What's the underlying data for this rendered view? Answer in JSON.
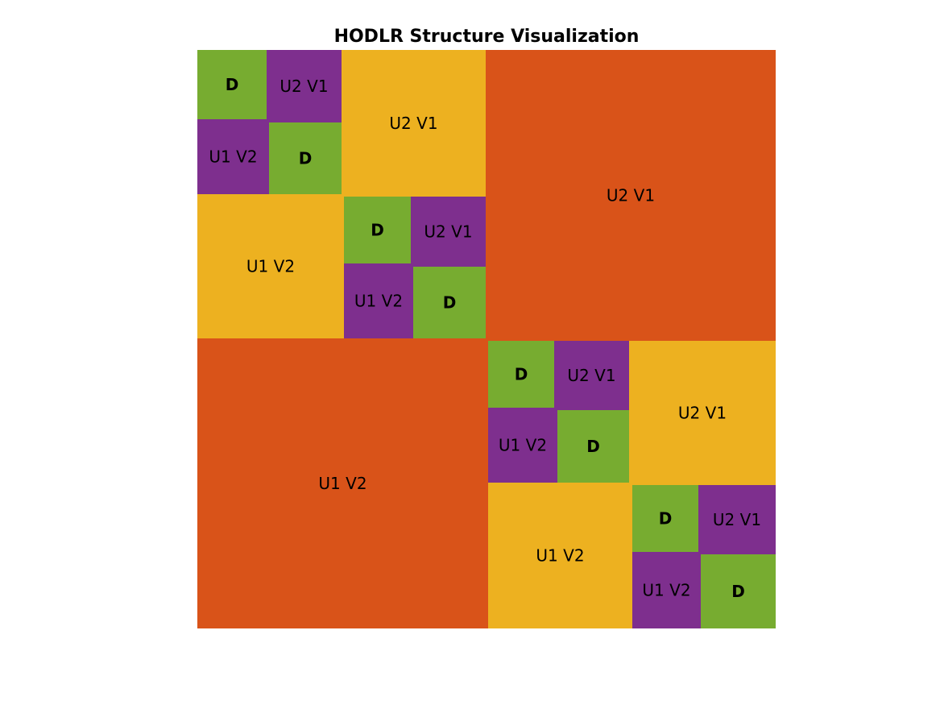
{
  "title": "HODLR Structure Visualization",
  "colors": {
    "diagonal": "#77AC30",
    "level3": "#7E2F8E",
    "level2": "#EDB120",
    "level1": "#D95319",
    "text": "#000000",
    "background": "#FFFFFF"
  },
  "labels": {
    "diagonal": "D",
    "upper": "U2 V1",
    "lower": "U1 V2"
  },
  "blocks": [
    {
      "name": "level1-upper",
      "level": "level1",
      "kind": "upper"
    },
    {
      "name": "level1-lower",
      "level": "level1",
      "kind": "lower"
    },
    {
      "name": "level2-upper-tl",
      "level": "level2",
      "kind": "upper"
    },
    {
      "name": "level2-lower-tl",
      "level": "level2",
      "kind": "lower"
    },
    {
      "name": "level2-upper-br",
      "level": "level2",
      "kind": "upper"
    },
    {
      "name": "level2-lower-br",
      "level": "level2",
      "kind": "lower"
    },
    {
      "name": "level3-upper-1",
      "level": "level3",
      "kind": "upper"
    },
    {
      "name": "level3-lower-1",
      "level": "level3",
      "kind": "lower"
    },
    {
      "name": "level3-upper-2",
      "level": "level3",
      "kind": "upper"
    },
    {
      "name": "level3-lower-2",
      "level": "level3",
      "kind": "lower"
    },
    {
      "name": "level3-upper-3",
      "level": "level3",
      "kind": "upper"
    },
    {
      "name": "level3-lower-3",
      "level": "level3",
      "kind": "lower"
    },
    {
      "name": "level3-upper-4",
      "level": "level3",
      "kind": "upper"
    },
    {
      "name": "level3-lower-4",
      "level": "level3",
      "kind": "lower"
    },
    {
      "name": "diag-1",
      "level": "diagonal",
      "kind": "diagonal"
    },
    {
      "name": "diag-2",
      "level": "diagonal",
      "kind": "diagonal"
    },
    {
      "name": "diag-3",
      "level": "diagonal",
      "kind": "diagonal"
    },
    {
      "name": "diag-4",
      "level": "diagonal",
      "kind": "diagonal"
    },
    {
      "name": "diag-5",
      "level": "diagonal",
      "kind": "diagonal"
    },
    {
      "name": "diag-6",
      "level": "diagonal",
      "kind": "diagonal"
    },
    {
      "name": "diag-7",
      "level": "diagonal",
      "kind": "diagonal"
    },
    {
      "name": "diag-8",
      "level": "diagonal",
      "kind": "diagonal"
    }
  ]
}
